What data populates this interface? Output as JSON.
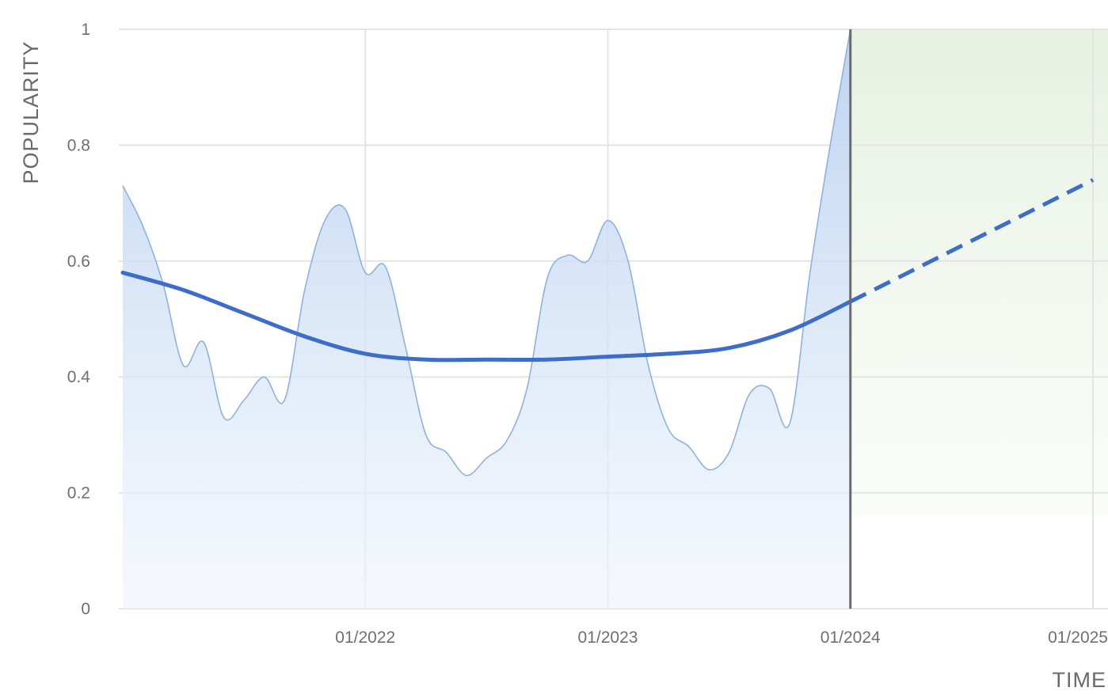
{
  "chart_data": {
    "type": "area",
    "xlabel": "TIME",
    "ylabel": "POPULARITY",
    "ylim": [
      0,
      1
    ],
    "xlim": [
      "2021-01",
      "2025-01"
    ],
    "yticks": [
      "0",
      "0.2",
      "0.4",
      "0.6",
      "0.8",
      "1"
    ],
    "ytick_values": [
      0,
      0.2,
      0.4,
      0.6,
      0.8,
      1
    ],
    "xticks": [
      "01/2022",
      "01/2023",
      "01/2024",
      "01/2025"
    ],
    "xtick_values": [
      "2022-01",
      "2023-01",
      "2024-01",
      "2025-01"
    ],
    "grid": true,
    "current_marker": "2024-01",
    "forecast_region": [
      "2024-01",
      "2025-01"
    ],
    "colors": {
      "area_fill": "#c9dcf3",
      "area_line": "#8db2e0",
      "trend_line": "#3b6dc9",
      "forecast_bg": "#eaf3e6",
      "marker_line": "#6b6b6b",
      "grid": "#e4e4e4"
    },
    "series": [
      {
        "role": "popularity",
        "style": "area",
        "x": [
          "2021-01",
          "2021-02",
          "2021-03",
          "2021-04",
          "2021-05",
          "2021-06",
          "2021-07",
          "2021-08",
          "2021-09",
          "2021-10",
          "2021-11",
          "2021-12",
          "2022-01",
          "2022-02",
          "2022-03",
          "2022-04",
          "2022-05",
          "2022-06",
          "2022-07",
          "2022-08",
          "2022-09",
          "2022-10",
          "2022-11",
          "2022-12",
          "2023-01",
          "2023-02",
          "2023-03",
          "2023-04",
          "2023-05",
          "2023-06",
          "2023-07",
          "2023-08",
          "2023-09",
          "2023-10",
          "2023-11",
          "2023-12",
          "2024-01"
        ],
        "y": [
          0.73,
          0.66,
          0.56,
          0.42,
          0.46,
          0.33,
          0.36,
          0.4,
          0.36,
          0.55,
          0.67,
          0.69,
          0.58,
          0.59,
          0.45,
          0.3,
          0.27,
          0.23,
          0.26,
          0.29,
          0.38,
          0.57,
          0.61,
          0.6,
          0.67,
          0.6,
          0.42,
          0.31,
          0.28,
          0.24,
          0.27,
          0.37,
          0.38,
          0.32,
          0.58,
          0.8,
          1.0
        ]
      },
      {
        "role": "trend",
        "style": "line",
        "x": [
          "2021-01",
          "2021-04",
          "2021-07",
          "2021-10",
          "2022-01",
          "2022-04",
          "2022-07",
          "2022-10",
          "2023-01",
          "2023-04",
          "2023-07",
          "2023-10",
          "2024-01"
        ],
        "y": [
          0.58,
          0.55,
          0.51,
          0.47,
          0.44,
          0.43,
          0.43,
          0.43,
          0.435,
          0.44,
          0.45,
          0.48,
          0.53
        ]
      },
      {
        "role": "forecast",
        "style": "dashed",
        "x": [
          "2024-01",
          "2025-01"
        ],
        "y": [
          0.53,
          0.74
        ]
      }
    ]
  }
}
